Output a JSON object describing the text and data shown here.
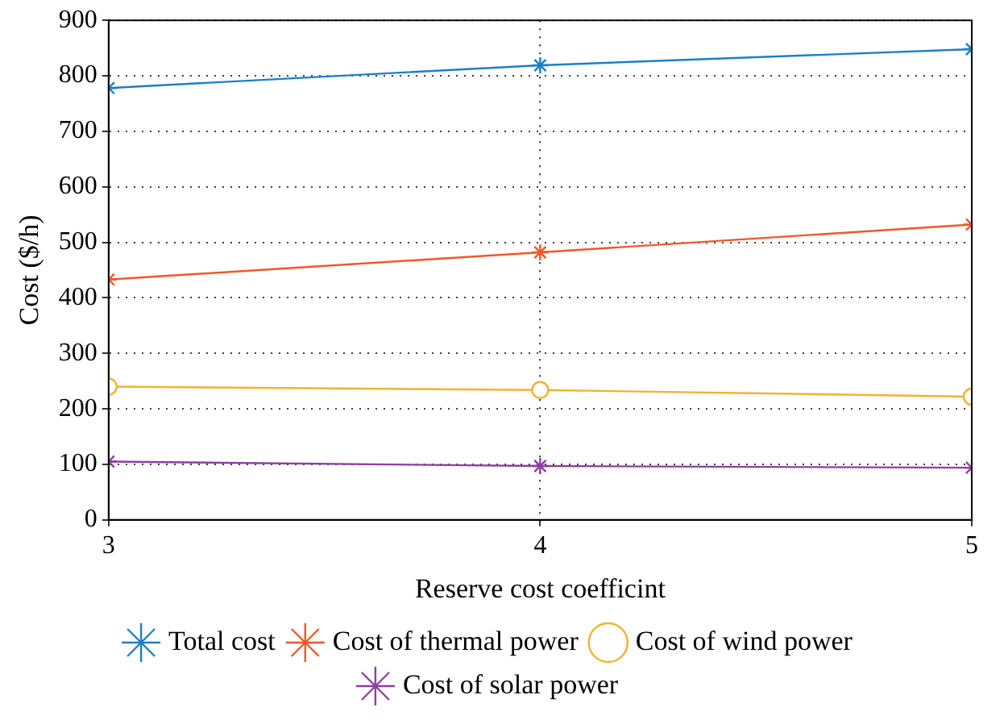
{
  "chart_data": {
    "type": "line",
    "xlabel": "Reserve cost coefficint",
    "ylabel": "Cost ($/h)",
    "x": [
      3,
      4,
      5
    ],
    "xlim": [
      3,
      5
    ],
    "xticks": [
      3,
      4,
      5
    ],
    "ylim": [
      0,
      900
    ],
    "yticks": [
      0,
      100,
      200,
      300,
      400,
      500,
      600,
      700,
      800,
      900
    ],
    "grid": true,
    "legend": "bottom",
    "line_style": "solid",
    "series": [
      {
        "name": "Total cost",
        "color": "#1b80c6",
        "marker": "cross",
        "values": [
          778,
          819,
          848
        ]
      },
      {
        "name": "Cost of thermal power",
        "color": "#f0582a",
        "marker": "cross",
        "values": [
          433,
          482,
          532
        ]
      },
      {
        "name": "Cost of wind power",
        "color": "#f2b233",
        "marker": "circle",
        "values": [
          240,
          234,
          222
        ]
      },
      {
        "name": "Cost of solar power",
        "color": "#8e3fa0",
        "marker": "cross",
        "values": [
          105,
          97,
          94
        ]
      }
    ]
  }
}
